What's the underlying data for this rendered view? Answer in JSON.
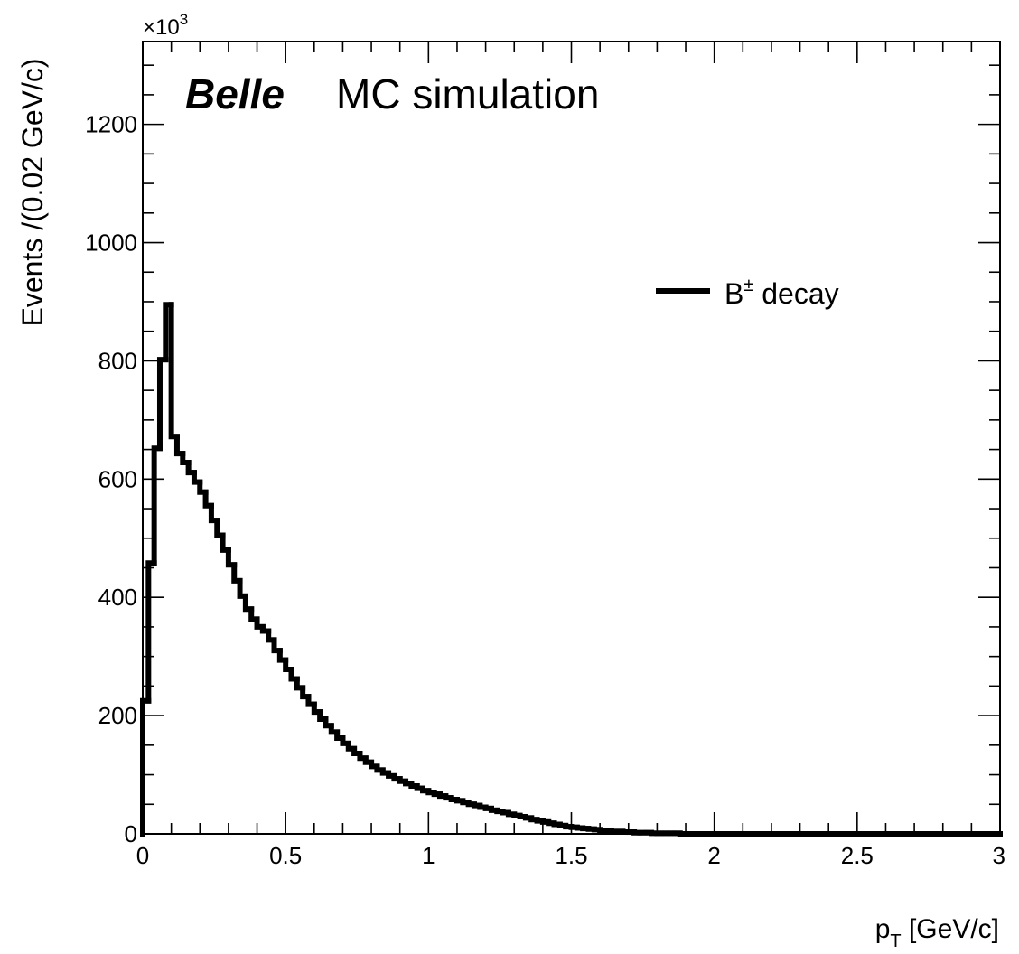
{
  "chart_data": {
    "type": "histogram",
    "title": "",
    "experiment_label": "Belle",
    "annotation": "MC simulation",
    "xlabel": {
      "base": "p",
      "sub": "T",
      "rest": " [GeV/c]"
    },
    "ylabel": "Events /(0.02 GeV/c)",
    "y_multiplier": {
      "base": "×10",
      "exp": "3"
    },
    "xlim": [
      0,
      3
    ],
    "ylim": [
      0,
      1340
    ],
    "grid": false,
    "legend_position": "upper-right",
    "x_ticks": [
      0,
      0.5,
      1,
      1.5,
      2,
      2.5,
      3
    ],
    "x_tick_labels": [
      "0",
      "0.5",
      "1",
      "1.5",
      "2",
      "2.5",
      "3"
    ],
    "y_ticks": [
      0,
      200,
      400,
      600,
      800,
      1000,
      1200
    ],
    "y_tick_labels": [
      "0",
      "200",
      "400",
      "600",
      "800",
      "1000",
      "1200"
    ],
    "bin_width": 0.02,
    "series": [
      {
        "name": "B± decay",
        "legend": {
          "base": "B",
          "sup": "±",
          "rest": " decay"
        },
        "color": "#000000",
        "values": [
          225,
          458,
          652,
          802,
          895,
          672,
          643,
          628,
          611,
          595,
          578,
          555,
          530,
          505,
          480,
          455,
          428,
          402,
          380,
          363,
          350,
          343,
          328,
          310,
          294,
          278,
          262,
          247,
          232,
          219,
          206,
          194,
          183,
          172,
          162,
          153,
          144,
          136,
          128,
          121,
          114,
          108,
          103,
          98,
          93,
          89,
          85,
          81,
          77,
          73,
          70,
          67,
          64,
          61,
          58,
          56,
          53,
          50,
          48,
          45,
          43,
          40,
          38,
          36,
          33,
          31,
          29,
          27,
          24,
          22,
          20,
          18,
          16,
          14,
          12,
          11,
          10,
          9,
          8,
          7,
          6,
          5,
          4,
          4,
          3,
          3,
          2,
          2,
          2,
          1,
          1,
          1,
          1,
          1,
          0,
          0,
          0,
          0,
          0,
          0,
          0,
          0,
          0,
          0,
          0,
          0,
          0,
          0,
          0,
          0,
          0,
          0,
          0,
          0,
          0,
          0,
          0,
          0,
          0,
          0,
          0,
          0,
          0,
          0,
          0,
          0,
          0,
          0,
          0,
          0,
          0,
          0,
          0,
          0,
          0,
          0,
          0,
          0,
          0,
          0,
          0,
          0,
          0,
          0,
          0,
          0,
          0,
          0,
          0,
          0
        ]
      }
    ]
  }
}
